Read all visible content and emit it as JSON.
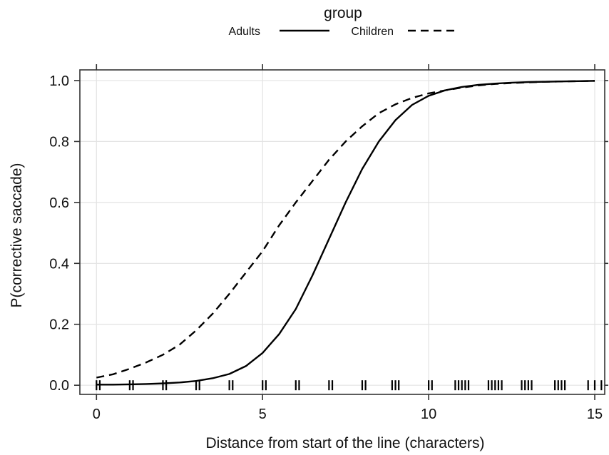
{
  "chart_data": {
    "type": "line",
    "title": "",
    "xlabel": "Distance from start of the line (characters)",
    "ylabel": "P(corrective saccade)",
    "xlim": [
      -0.5,
      15.3
    ],
    "ylim": [
      -0.03,
      1.035
    ],
    "xticks": [
      0,
      5,
      10,
      15
    ],
    "xtick_labels": [
      "0",
      "5",
      "10",
      "15"
    ],
    "yticks": [
      0.0,
      0.2,
      0.4,
      0.6,
      0.8,
      1.0
    ],
    "ytick_labels": [
      "0.0",
      "0.2",
      "0.4",
      "0.6",
      "0.8",
      "1.0"
    ],
    "grid": true,
    "legend": {
      "title": "group",
      "position": "top-center",
      "entries": [
        {
          "label": "Adults",
          "linestyle": "solid"
        },
        {
          "label": "Children",
          "linestyle": "dashed"
        }
      ]
    },
    "series": [
      {
        "name": "Adults",
        "linestyle": "solid",
        "x": [
          0,
          0.5,
          1,
          1.5,
          2,
          2.5,
          3,
          3.5,
          4,
          4.5,
          5,
          5.5,
          6,
          6.5,
          7,
          7.5,
          8,
          8.5,
          9,
          9.5,
          10,
          10.5,
          11,
          11.5,
          12,
          12.5,
          13,
          13.5,
          14,
          14.5,
          15
        ],
        "y": [
          0.002,
          0.002,
          0.003,
          0.004,
          0.006,
          0.009,
          0.014,
          0.023,
          0.037,
          0.063,
          0.106,
          0.168,
          0.25,
          0.36,
          0.48,
          0.6,
          0.71,
          0.8,
          0.87,
          0.92,
          0.95,
          0.968,
          0.979,
          0.986,
          0.99,
          0.993,
          0.995,
          0.996,
          0.997,
          0.998,
          0.999
        ]
      },
      {
        "name": "Children",
        "linestyle": "dashed",
        "x": [
          0,
          0.5,
          1,
          1.5,
          2,
          2.5,
          3,
          3.5,
          4,
          4.5,
          5,
          5.5,
          6,
          6.5,
          7,
          7.5,
          8,
          8.5,
          9,
          9.5,
          10,
          10.5,
          11,
          11.5,
          12,
          12.5,
          13,
          13.5,
          14,
          14.5,
          15
        ],
        "y": [
          0.025,
          0.036,
          0.054,
          0.075,
          0.1,
          0.133,
          0.18,
          0.235,
          0.3,
          0.37,
          0.44,
          0.525,
          0.6,
          0.67,
          0.74,
          0.8,
          0.85,
          0.893,
          0.922,
          0.943,
          0.958,
          0.968,
          0.977,
          0.984,
          0.989,
          0.992,
          0.994,
          0.996,
          0.997,
          0.998,
          0.999
        ]
      }
    ],
    "rug": {
      "description": "observed x positions at y=0",
      "x": [
        0,
        0.1,
        1,
        1.1,
        2,
        2.1,
        3,
        3.1,
        4,
        4.1,
        5,
        5.1,
        6,
        6.1,
        7,
        7.1,
        8,
        8.1,
        8.9,
        9.0,
        9.1,
        10,
        10.1,
        10.8,
        10.9,
        11,
        11.1,
        11.2,
        11.8,
        11.9,
        12,
        12.1,
        12.2,
        12.8,
        12.9,
        13,
        13.1,
        13.8,
        13.9,
        14.0,
        14.1,
        14.8,
        15.0,
        15.2
      ]
    }
  }
}
